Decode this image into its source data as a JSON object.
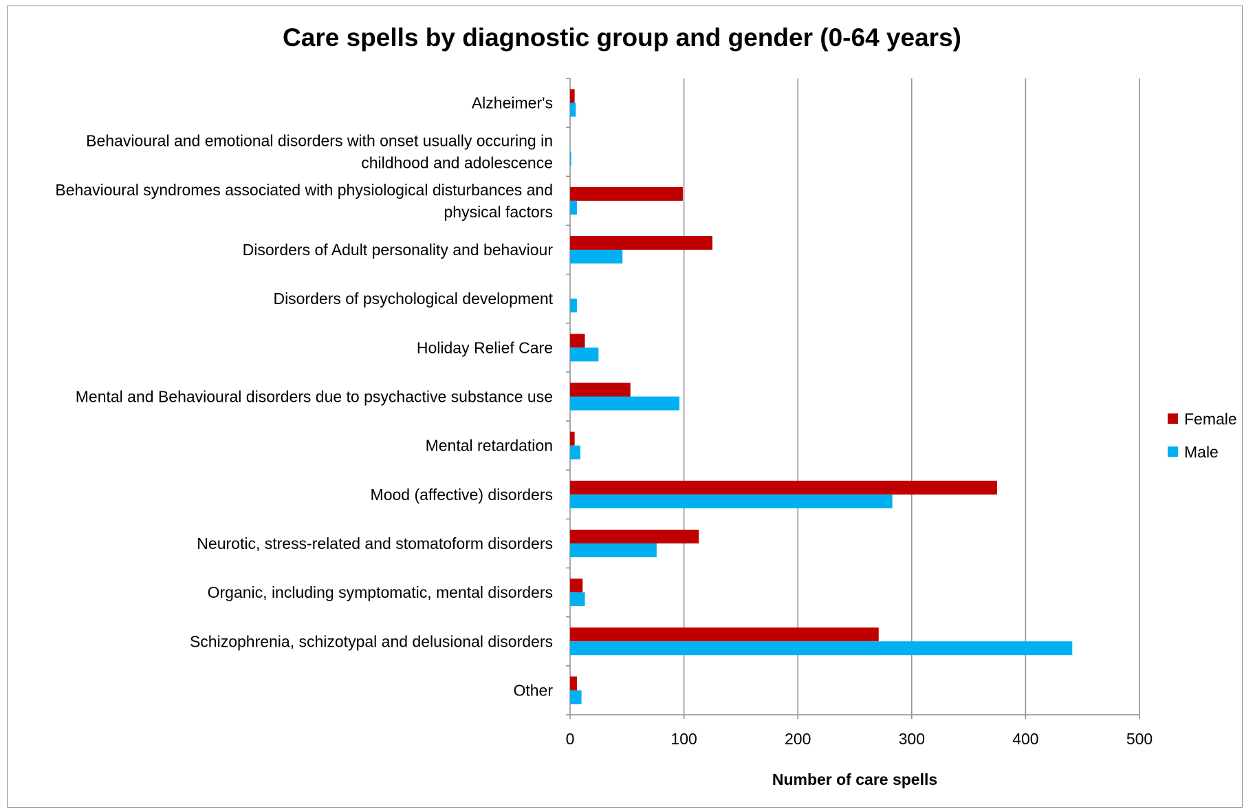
{
  "chart_data": {
    "type": "bar",
    "orientation": "horizontal",
    "title": "Care spells by diagnostic group and gender (0-64 years)",
    "xlabel": "Number of care spells",
    "ylabel": "",
    "xlim": [
      0,
      500
    ],
    "x_ticks": [
      0,
      100,
      200,
      300,
      400,
      500
    ],
    "grid": true,
    "legend_position": "right",
    "categories": [
      [
        "Alzheimer's"
      ],
      [
        "Behavioural and emotional disorders with onset usually occuring in",
        "childhood and adolescence"
      ],
      [
        "Behavioural syndromes associated with physiological disturbances and",
        "physical factors"
      ],
      [
        "Disorders of Adult personality and behaviour"
      ],
      [
        "Disorders of psychological development"
      ],
      [
        "Holiday Relief Care"
      ],
      [
        "Mental and Behavioural disorders due to psychactive substance use"
      ],
      [
        "Mental retardation"
      ],
      [
        "Mood (affective) disorders"
      ],
      [
        "Neurotic, stress-related and stomatoform disorders"
      ],
      [
        "Organic, including symptomatic, mental disorders"
      ],
      [
        "Schizophrenia, schizotypal and delusional disorders"
      ],
      [
        "Other"
      ]
    ],
    "series": [
      {
        "name": "Female",
        "color": "#c00000",
        "values": [
          4,
          0,
          99,
          125,
          0,
          13,
          53,
          4,
          375,
          113,
          11,
          271,
          6
        ]
      },
      {
        "name": "Male",
        "color": "#00b0f0",
        "values": [
          5,
          1,
          6,
          46,
          6,
          25,
          96,
          9,
          283,
          76,
          13,
          441,
          10
        ]
      }
    ]
  }
}
